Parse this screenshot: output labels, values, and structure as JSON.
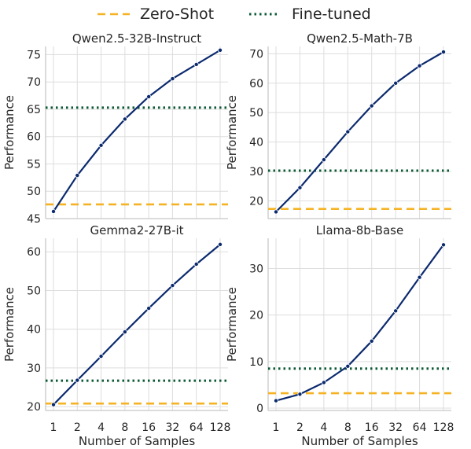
{
  "legend": {
    "placement": "top-center",
    "items": [
      {
        "label": "Zero-Shot",
        "color": "#f5b324",
        "dash": "dashed"
      },
      {
        "label": "Fine-tuned",
        "color": "#0b5a35",
        "dash": "dotted"
      }
    ]
  },
  "colors": {
    "sampling_line": "#0b2a6e",
    "zero_shot": "#f5b324",
    "fine_tuned": "#0b5a35",
    "grid": "#dddddd",
    "axis": "#c8c8c8"
  },
  "chart_data": [
    {
      "type": "line",
      "title": "Qwen2.5-32B-Instruct",
      "xlabel": "",
      "ylabel": "Performance",
      "x_scale": "log2",
      "x": [
        1,
        2,
        4,
        8,
        16,
        32,
        64,
        128
      ],
      "xticks": [
        "1",
        "2",
        "4",
        "8",
        "16",
        "32",
        "64",
        "128"
      ],
      "yticks": [
        45,
        50,
        55,
        60,
        65,
        70,
        75
      ],
      "ylim": [
        45,
        76.5
      ],
      "grid": true,
      "series": [
        {
          "values": [
            46.3,
            52.9,
            58.4,
            63.2,
            67.3,
            70.6,
            73.2,
            75.8
          ]
        }
      ],
      "zero_shot": 47.6,
      "fine_tuned": 65.3
    },
    {
      "type": "line",
      "title": "Qwen2.5-Math-7B",
      "xlabel": "",
      "ylabel": "Performance",
      "x_scale": "log2",
      "x": [
        1,
        2,
        4,
        8,
        16,
        32,
        64,
        128
      ],
      "xticks": [
        "1",
        "2",
        "4",
        "8",
        "16",
        "32",
        "64",
        "128"
      ],
      "yticks": [
        20,
        30,
        40,
        50,
        60,
        70
      ],
      "ylim": [
        14,
        72.5
      ],
      "grid": true,
      "series": [
        {
          "values": [
            16.3,
            24.5,
            34.0,
            43.5,
            52.3,
            60.0,
            65.9,
            70.6
          ]
        }
      ],
      "zero_shot": 17.3,
      "fine_tuned": 30.3
    },
    {
      "type": "line",
      "title": "Gemma2-27B-it",
      "xlabel": "Number of Samples",
      "ylabel": "Performance",
      "x_scale": "log2",
      "x": [
        1,
        2,
        4,
        8,
        16,
        32,
        64,
        128
      ],
      "xticks": [
        "1",
        "2",
        "4",
        "8",
        "16",
        "32",
        "64",
        "128"
      ],
      "yticks": [
        20,
        30,
        40,
        50,
        60
      ],
      "ylim": [
        19,
        63.5
      ],
      "grid": true,
      "series": [
        {
          "values": [
            20.5,
            26.8,
            33.0,
            39.3,
            45.4,
            51.3,
            56.8,
            61.9
          ]
        }
      ],
      "zero_shot": 20.8,
      "fine_tuned": 26.7
    },
    {
      "type": "line",
      "title": "Llama-8b-Base",
      "xlabel": "Number of Samples",
      "ylabel": "Performance",
      "x_scale": "log2",
      "x": [
        1,
        2,
        4,
        8,
        16,
        32,
        64,
        128
      ],
      "xticks": [
        "1",
        "2",
        "4",
        "8",
        "16",
        "32",
        "64",
        "128"
      ],
      "yticks": [
        0,
        10,
        20,
        30
      ],
      "ylim": [
        -0.5,
        36.5
      ],
      "grid": true,
      "series": [
        {
          "values": [
            1.6,
            3.0,
            5.5,
            9.0,
            14.4,
            20.9,
            28.1,
            35.1
          ]
        }
      ],
      "zero_shot": 3.2,
      "fine_tuned": 8.5
    }
  ]
}
